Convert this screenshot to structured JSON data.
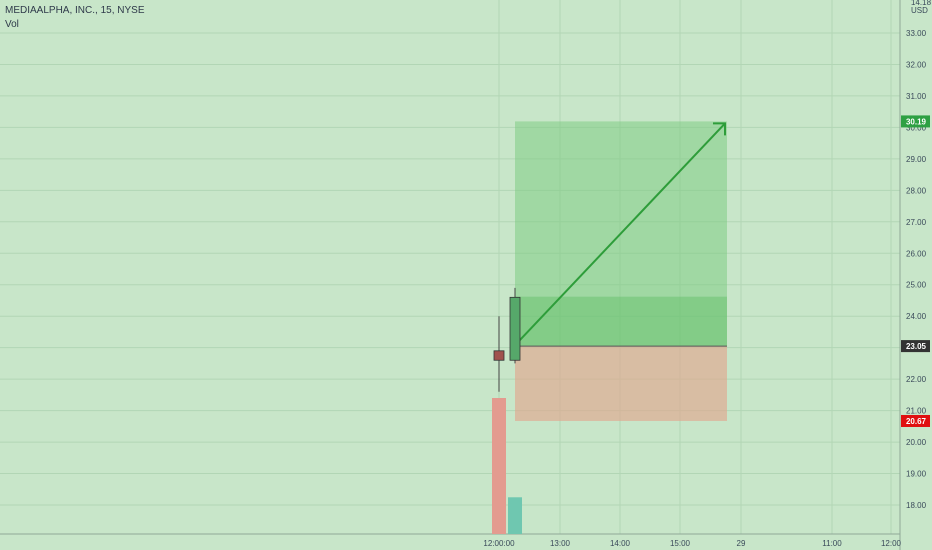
{
  "header": {
    "symbol": "MEDIAALPHA, INC., 15, NYSE",
    "volume_label": "Vol"
  },
  "price_axis": {
    "top_label": "14.18",
    "currency": "USD"
  },
  "colors": {
    "background": "#c8e6c9",
    "up": "#4aa862",
    "down": "#a0524d",
    "target_fill": "#7fcc84",
    "stop_fill": "#e0a88f",
    "target_tag": "#2ea043",
    "stop_tag": "#e01010",
    "entry_tag": "#333333"
  },
  "chart_data": {
    "type": "candlestick",
    "ylim": [
      17.5,
      34.2
    ],
    "y_ticks": [
      "33.00",
      "32.00",
      "31.00",
      "30.00",
      "29.00",
      "28.00",
      "27.00",
      "26.00",
      "25.00",
      "24.00",
      "23.00",
      "22.00",
      "21.00",
      "20.00",
      "19.00",
      "18.00"
    ],
    "x_ticks": [
      "12:00:00",
      "13:00",
      "14:00",
      "15:00",
      "29",
      "11:00",
      "12:00"
    ],
    "candles": [
      {
        "time": "12:00:00",
        "open": 22.9,
        "high": 24.0,
        "low": 21.6,
        "close": 22.6,
        "direction": "down"
      },
      {
        "time": "12:15",
        "open": 22.6,
        "high": 24.9,
        "low": 22.5,
        "close": 24.6,
        "direction": "up"
      }
    ],
    "volume": [
      {
        "time": "12:00:00",
        "direction": "down",
        "relative": 1.0
      },
      {
        "time": "12:15",
        "direction": "up",
        "relative": 0.27
      }
    ],
    "position": {
      "type": "long",
      "entry": 23.05,
      "target": 30.19,
      "stop": 20.67,
      "entry_label": "23.05",
      "target_label": "30.19",
      "stop_label": "20.67"
    },
    "grid": true
  }
}
